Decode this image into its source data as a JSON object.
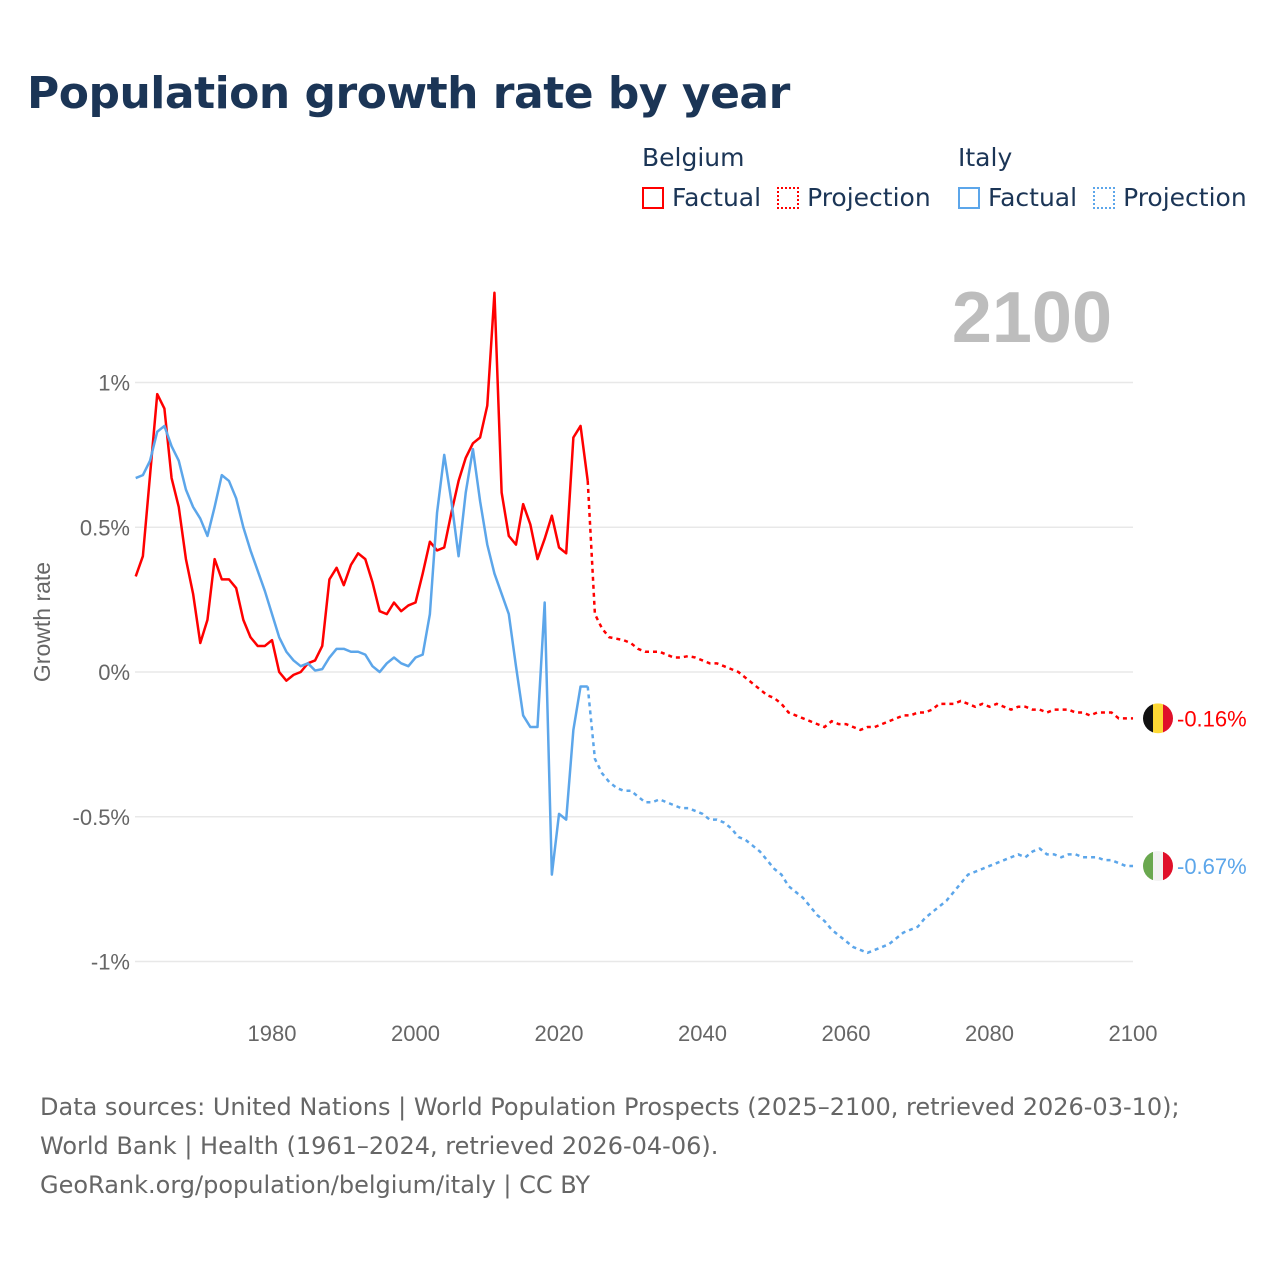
{
  "title": "Population growth rate by year",
  "legend": [
    {
      "country": "Belgium",
      "color": "#ff0000",
      "factual_label": "Factual",
      "projection_label": "Projection"
    },
    {
      "country": "Italy",
      "color": "#5ca6ea",
      "factual_label": "Factual",
      "projection_label": "Projection"
    }
  ],
  "year_display": "2100",
  "footer": {
    "sources": "Data sources: United Nations | World Population Prospects (2025–2100, retrieved 2026-03-10); World Bank | Health (1961–2024, retrieved 2026-04-06).",
    "credit": "GeoRank.org/population/belgium/italy | CC BY"
  },
  "chart_data": {
    "type": "line",
    "title": "Population growth rate by year",
    "xlabel": "",
    "ylabel": "Growth rate",
    "xlim": [
      1961,
      2100
    ],
    "ylim": [
      -1.05,
      1.05
    ],
    "x_ticks": [
      {
        "v": 1980,
        "label": "1980"
      },
      {
        "v": 2000,
        "label": "2000"
      },
      {
        "v": 2020,
        "label": "2020"
      },
      {
        "v": 2040,
        "label": "2040"
      },
      {
        "v": 2060,
        "label": "2060"
      },
      {
        "v": 2080,
        "label": "2080"
      },
      {
        "v": 2100,
        "label": "2100"
      }
    ],
    "y_ticks": [
      {
        "v": 1,
        "label": "1%"
      },
      {
        "v": 0.5,
        "label": "0.5%"
      },
      {
        "v": 0,
        "label": "0%"
      },
      {
        "v": -0.5,
        "label": "-0.5%"
      },
      {
        "v": -1,
        "label": "-1%"
      }
    ],
    "grid": true,
    "legend_position": "top-right",
    "factual_start": 1961,
    "projection_start": 2025,
    "series": [
      {
        "name": "Belgium",
        "color": "#ff0000",
        "end_label": "-0.16%",
        "flag": "belgium-flag",
        "factual": [
          0.33,
          0.4,
          0.68,
          0.96,
          0.91,
          0.67,
          0.57,
          0.39,
          0.27,
          0.1,
          0.18,
          0.39,
          0.32,
          0.32,
          0.29,
          0.18,
          0.12,
          0.09,
          0.09,
          0.11,
          0.0,
          -0.03,
          -0.01,
          0.0,
          0.03,
          0.04,
          0.09,
          0.32,
          0.36,
          0.3,
          0.37,
          0.41,
          0.39,
          0.31,
          0.21,
          0.2,
          0.24,
          0.21,
          0.23,
          0.24,
          0.34,
          0.45,
          0.42,
          0.43,
          0.55,
          0.66,
          0.74,
          0.79,
          0.81,
          0.92,
          1.31,
          0.62,
          0.47,
          0.44,
          0.58,
          0.51,
          0.39,
          0.46,
          0.54,
          0.43,
          0.41,
          0.81,
          0.85,
          0.66
        ],
        "projection": [
          0.2,
          0.15,
          0.12,
          0.115,
          0.11,
          0.1,
          0.08,
          0.07,
          0.07,
          0.07,
          0.06,
          0.05,
          0.05,
          0.055,
          0.05,
          0.04,
          0.03,
          0.03,
          0.02,
          0.01,
          0.0,
          -0.02,
          -0.04,
          -0.06,
          -0.08,
          -0.09,
          -0.11,
          -0.14,
          -0.15,
          -0.16,
          -0.17,
          -0.18,
          -0.19,
          -0.17,
          -0.18,
          -0.18,
          -0.19,
          -0.2,
          -0.19,
          -0.19,
          -0.18,
          -0.17,
          -0.16,
          -0.15,
          -0.15,
          -0.14,
          -0.14,
          -0.13,
          -0.11,
          -0.11,
          -0.11,
          -0.1,
          -0.11,
          -0.12,
          -0.11,
          -0.12,
          -0.11,
          -0.12,
          -0.13,
          -0.12,
          -0.12,
          -0.13,
          -0.13,
          -0.14,
          -0.13,
          -0.13,
          -0.13,
          -0.14,
          -0.14,
          -0.15,
          -0.14,
          -0.14,
          -0.14,
          -0.16,
          -0.16,
          -0.16
        ]
      },
      {
        "name": "Italy",
        "color": "#5ca6ea",
        "end_label": "-0.67%",
        "flag": "italy-flag",
        "factual": [
          0.67,
          0.68,
          0.73,
          0.83,
          0.85,
          0.78,
          0.73,
          0.63,
          0.57,
          0.53,
          0.47,
          0.57,
          0.68,
          0.66,
          0.6,
          0.5,
          0.42,
          0.35,
          0.28,
          0.2,
          0.12,
          0.07,
          0.04,
          0.02,
          0.03,
          0.005,
          0.01,
          0.05,
          0.08,
          0.08,
          0.07,
          0.07,
          0.06,
          0.02,
          0.0,
          0.03,
          0.05,
          0.03,
          0.02,
          0.05,
          0.06,
          0.2,
          0.55,
          0.75,
          0.59,
          0.4,
          0.62,
          0.77,
          0.59,
          0.44,
          0.34,
          0.27,
          0.2,
          0.02,
          -0.15,
          -0.19,
          -0.19,
          0.24,
          -0.7,
          -0.49,
          -0.51,
          -0.2,
          -0.05,
          -0.05
        ],
        "projection": [
          -0.3,
          -0.35,
          -0.38,
          -0.4,
          -0.41,
          -0.41,
          -0.43,
          -0.45,
          -0.45,
          -0.44,
          -0.45,
          -0.46,
          -0.47,
          -0.47,
          -0.48,
          -0.49,
          -0.51,
          -0.51,
          -0.52,
          -0.54,
          -0.57,
          -0.58,
          -0.6,
          -0.62,
          -0.65,
          -0.68,
          -0.7,
          -0.74,
          -0.76,
          -0.78,
          -0.81,
          -0.84,
          -0.86,
          -0.89,
          -0.91,
          -0.93,
          -0.95,
          -0.96,
          -0.97,
          -0.96,
          -0.95,
          -0.94,
          -0.92,
          -0.9,
          -0.89,
          -0.88,
          -0.85,
          -0.83,
          -0.81,
          -0.79,
          -0.76,
          -0.73,
          -0.7,
          -0.69,
          -0.68,
          -0.67,
          -0.66,
          -0.65,
          -0.64,
          -0.63,
          -0.64,
          -0.62,
          -0.61,
          -0.63,
          -0.63,
          -0.64,
          -0.63,
          -0.63,
          -0.64,
          -0.64,
          -0.64,
          -0.65,
          -0.65,
          -0.66,
          -0.67,
          -0.67
        ]
      }
    ]
  }
}
